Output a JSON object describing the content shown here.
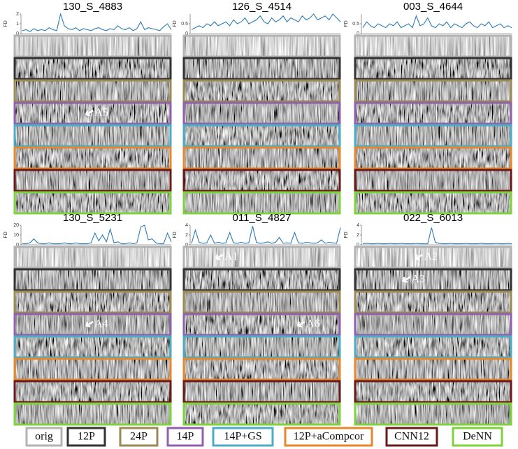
{
  "panels": [
    {
      "title": "130_S_4883",
      "fd_label": "FD",
      "ylim": [
        0,
        2
      ],
      "yticks": [
        0,
        1,
        2
      ],
      "annotations": [
        "A5"
      ],
      "fd": [
        0.3,
        0.4,
        0.2,
        0.5,
        0.3,
        0.4,
        0.3,
        0.6,
        0.4,
        0.3,
        2.0,
        0.8,
        0.5,
        0.4,
        0.6,
        0.3,
        0.5,
        0.4,
        0.3,
        0.5,
        0.6,
        0.4,
        0.3,
        0.5,
        0.4,
        0.8,
        0.5,
        0.4,
        0.6,
        0.3,
        0.5,
        1.2,
        0.4,
        0.6,
        0.5,
        0.4,
        0.3,
        0.7,
        1.0,
        0.4
      ]
    },
    {
      "title": "126_S_4514",
      "fd_label": "FD",
      "ylim": [
        0,
        1
      ],
      "yticks": [
        0,
        0.5
      ],
      "annotations": [],
      "fd": [
        0.2,
        0.3,
        0.4,
        0.3,
        0.5,
        0.4,
        0.6,
        0.4,
        0.5,
        0.6,
        0.4,
        0.7,
        0.5,
        0.6,
        0.8,
        0.5,
        0.6,
        0.7,
        0.9,
        0.6,
        0.5,
        0.8,
        0.6,
        0.7,
        0.9,
        0.6,
        0.8,
        0.7,
        0.6,
        0.9,
        0.7,
        0.8,
        1.0,
        0.7,
        0.8,
        0.9,
        0.7,
        1.0,
        0.8,
        0.6
      ]
    },
    {
      "title": "003_S_4644",
      "fd_label": "FD",
      "ylim": [
        0,
        1
      ],
      "yticks": [
        0,
        0.5
      ],
      "annotations": [],
      "fd": [
        0.3,
        0.6,
        0.4,
        0.3,
        0.5,
        0.4,
        0.3,
        0.5,
        0.4,
        0.6,
        0.3,
        0.4,
        0.5,
        0.3,
        0.9,
        0.4,
        0.5,
        0.8,
        0.4,
        0.3,
        0.5,
        0.4,
        0.6,
        0.3,
        0.5,
        0.4,
        0.3,
        0.5,
        0.6,
        0.4,
        0.3,
        0.5,
        0.4,
        0.6,
        0.3,
        0.4,
        0.5,
        0.3,
        0.4,
        0.3
      ]
    },
    {
      "title": "130_S_5231",
      "fd_label": "FD",
      "ylim": [
        0,
        20
      ],
      "yticks": [
        0,
        10,
        20
      ],
      "annotations": [
        "A4"
      ],
      "fd": [
        1,
        1,
        2,
        6,
        2,
        1,
        1,
        2,
        1,
        1,
        1,
        2,
        1,
        1,
        2,
        1,
        1,
        1,
        2,
        12,
        4,
        10,
        3,
        16,
        2,
        3,
        1,
        1,
        2,
        1,
        2,
        18,
        20,
        5,
        6,
        2,
        1,
        1,
        12,
        3
      ]
    },
    {
      "title": "011_S_4827",
      "fd_label": "FD",
      "ylim": [
        0,
        4
      ],
      "yticks": [
        0,
        2,
        4
      ],
      "annotations": [
        "A1",
        "A6"
      ],
      "fd": [
        0.3,
        3.0,
        0.5,
        0.3,
        0.4,
        2.0,
        0.3,
        0.5,
        0.3,
        0.4,
        2.5,
        0.4,
        0.3,
        0.5,
        0.3,
        0.4,
        3.8,
        0.5,
        0.3,
        0.4,
        0.6,
        0.3,
        0.5,
        1.5,
        0.3,
        0.4,
        0.3,
        2.5,
        0.4,
        0.3,
        0.5,
        0.4,
        0.3,
        0.4,
        1.0,
        0.3,
        0.5,
        0.4,
        0.3,
        3.5
      ]
    },
    {
      "title": "022_S_6013",
      "fd_label": "FD",
      "ylim": [
        0,
        4
      ],
      "yticks": [
        0,
        2,
        4
      ],
      "annotations": [
        "A2",
        "A3"
      ],
      "fd": [
        0.2,
        0.3,
        0.2,
        0.2,
        0.3,
        0.2,
        0.2,
        0.3,
        0.2,
        0.2,
        0.3,
        0.2,
        0.2,
        0.2,
        0.3,
        0.2,
        0.2,
        0.2,
        3.5,
        0.5,
        0.3,
        0.2,
        0.2,
        0.3,
        0.2,
        0.2,
        0.2,
        0.3,
        0.2,
        0.2,
        0.2,
        0.3,
        0.2,
        0.2,
        0.2,
        0.3,
        0.2,
        0.2,
        0.3,
        0.2
      ]
    }
  ],
  "legend": [
    {
      "label": "orig",
      "color": "#b3b3b3"
    },
    {
      "label": "12P",
      "color": "#333333"
    },
    {
      "label": "24P",
      "color": "#9c8a55"
    },
    {
      "label": "14P",
      "color": "#9060ad"
    },
    {
      "label": "14P+GS",
      "color": "#4bacc6"
    },
    {
      "label": "12P+aCompcor",
      "color": "#e8872a"
    },
    {
      "label": "CNN12",
      "color": "#6b1a1a"
    },
    {
      "label": "DeNN",
      "color": "#7ed23a"
    }
  ]
}
